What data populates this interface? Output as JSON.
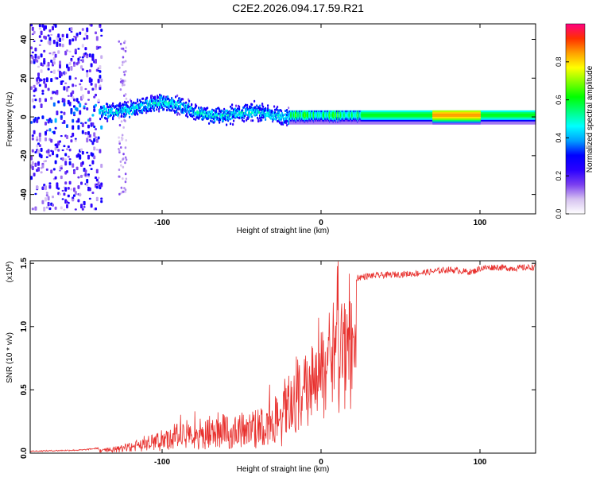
{
  "title": "C2E2.2026.094.17.59.R21",
  "chart_data": [
    {
      "type": "heatmap",
      "name": "spectrogram",
      "xlabel": "Height of straight line (km)",
      "ylabel": "Frequency (Hz)",
      "xlim": [
        -183,
        135
      ],
      "ylim": [
        -50,
        48
      ],
      "xticks": [
        -100,
        0,
        100
      ],
      "xtick_labels": [
        "-100",
        "0",
        "100"
      ],
      "yticks": [
        -40,
        -20,
        0,
        20,
        40
      ],
      "ytick_labels": [
        "-40",
        "-20",
        "0",
        "20",
        "40"
      ],
      "colorbar": {
        "label": "Normalized spectral amplitude",
        "range": [
          0,
          1
        ],
        "ticks": [
          0.0,
          0.2,
          0.4,
          0.6,
          0.8
        ],
        "tick_labels": [
          "0.0",
          "0.2",
          "0.4",
          "0.6",
          "0.8"
        ],
        "colors": [
          "#ffffff",
          "#d6c2f0",
          "#7b3ff0",
          "#2a00ff",
          "#0000ff",
          "#00a0ff",
          "#00ffff",
          "#00ff80",
          "#00ff00",
          "#80ff00",
          "#ffff00",
          "#ffa000",
          "#ff3000",
          "#ff0080"
        ]
      },
      "regions": [
        {
          "x_range": [
            -183,
            -138
          ],
          "freq_center": 0,
          "freq_spread": 48,
          "amplitude": 0.25,
          "description": "broadband scatter"
        },
        {
          "x_range": [
            -140,
            -20
          ],
          "freq_center": 3,
          "freq_spread": 6,
          "amplitude": 0.45
        },
        {
          "x_range": [
            -20,
            135
          ],
          "freq_center": 1,
          "freq_spread": 2,
          "amplitude": 0.6
        },
        {
          "x_range": [
            70,
            100
          ],
          "freq_center": 1,
          "freq_spread": 1.5,
          "amplitude": 0.85
        }
      ]
    },
    {
      "type": "line",
      "name": "snr",
      "xlabel": "Height of straight line (km)",
      "ylabel": "SNR (10 * v/v)",
      "multiplier_label": "(x10",
      "multiplier_exp": "4",
      "multiplier_close": ")",
      "xlim": [
        -183,
        135
      ],
      "ylim": [
        0,
        1.52
      ],
      "xticks": [
        -100,
        0,
        100
      ],
      "xtick_labels": [
        "-100",
        "0",
        "100"
      ],
      "yticks": [
        0.0,
        0.5,
        1.0,
        1.5
      ],
      "ytick_labels": [
        "0.0",
        "0.5",
        "1.0",
        "1.5"
      ],
      "color": "#e8312e",
      "envelope": {
        "x": [
          -183,
          -150,
          -130,
          -110,
          -90,
          -70,
          -50,
          -35,
          -20,
          -10,
          0,
          10,
          20,
          30,
          60,
          80,
          95,
          100,
          110,
          120,
          135
        ],
        "y": [
          0.01,
          0.02,
          0.05,
          0.12,
          0.25,
          0.3,
          0.32,
          0.38,
          0.55,
          0.78,
          1.0,
          1.25,
          1.38,
          1.4,
          1.42,
          1.45,
          1.43,
          1.46,
          1.47,
          1.46,
          1.47
        ]
      }
    }
  ]
}
